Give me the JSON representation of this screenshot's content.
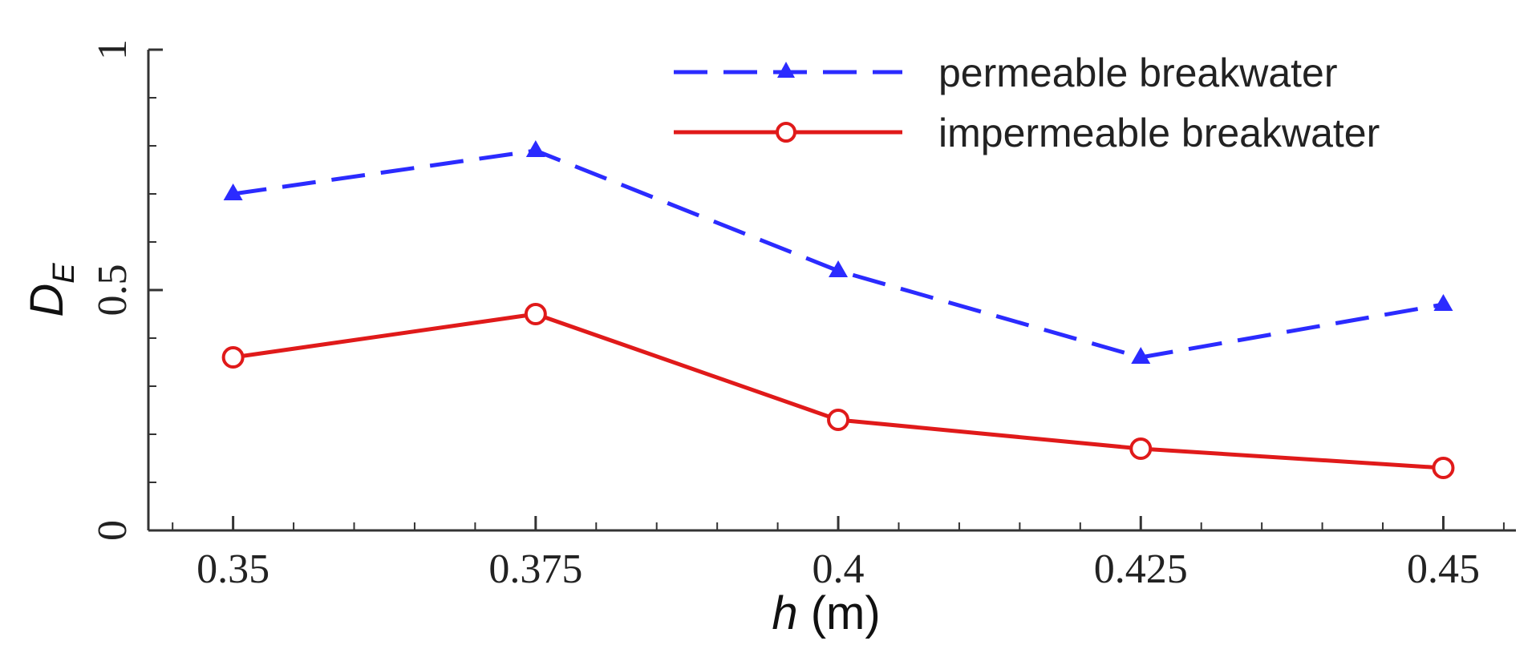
{
  "chart_data": {
    "type": "line",
    "x": [
      0.35,
      0.375,
      0.4,
      0.425,
      0.45
    ],
    "x_tick_labels": [
      "0.35",
      "0.375",
      "0.4",
      "0.425",
      "0.45"
    ],
    "y_tick_labels": [
      "0",
      "0.5",
      "1"
    ],
    "y_ticks": [
      0,
      0.5,
      1
    ],
    "xlim": [
      0.343,
      0.456
    ],
    "ylim": [
      0,
      1
    ],
    "xlabel": {
      "var": "h",
      "unit": " (m)"
    },
    "ylabel": {
      "var": "D",
      "sub": "E"
    },
    "grid": false,
    "legend_position": "top-right",
    "series": [
      {
        "name": "permeable breakwater",
        "values": [
          0.7,
          0.79,
          0.54,
          0.36,
          0.47
        ],
        "color": "#2b2bff",
        "line_style": "dashed",
        "marker": "triangle"
      },
      {
        "name": "impermeable breakwater",
        "values": [
          0.36,
          0.45,
          0.23,
          0.17,
          0.13
        ],
        "color": "#e01a1a",
        "line_style": "solid",
        "marker": "circle"
      }
    ]
  }
}
